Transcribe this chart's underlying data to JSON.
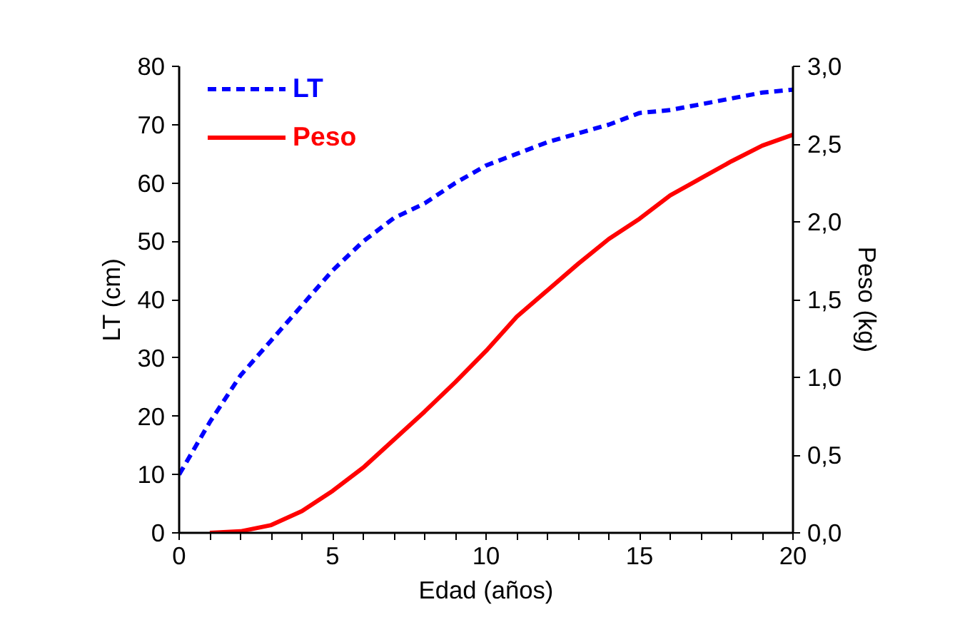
{
  "chart_data": {
    "type": "line",
    "xlabel": "Edad (años)",
    "ylabel": "LT (cm)",
    "y2label": "Peso (kg)",
    "xlim": [
      0,
      20
    ],
    "xticks": [
      0,
      {
        "value": 1,
        "label": null
      },
      {
        "value": 2,
        "label": null
      },
      {
        "value": 3,
        "label": null
      },
      {
        "value": 4,
        "label": null
      },
      5,
      {
        "value": 6,
        "label": null
      },
      {
        "value": 7,
        "label": null
      },
      {
        "value": 8,
        "label": null
      },
      {
        "value": 9,
        "label": null
      },
      10,
      {
        "value": 11,
        "label": null
      },
      {
        "value": 12,
        "label": null
      },
      {
        "value": 13,
        "label": null
      },
      {
        "value": 14,
        "label": null
      },
      15,
      {
        "value": 16,
        "label": null
      },
      {
        "value": 17,
        "label": null
      },
      {
        "value": 18,
        "label": null
      },
      {
        "value": 19,
        "label": null
      },
      20
    ],
    "ylim": [
      0,
      80
    ],
    "yticks": [
      0,
      10,
      20,
      30,
      40,
      50,
      60,
      70,
      80
    ],
    "y2lim": [
      0,
      3
    ],
    "y2ticks": [
      {
        "value": 0,
        "label": "0,0"
      },
      {
        "value": 0.5,
        "label": "0,5"
      },
      {
        "value": 1,
        "label": "1,0"
      },
      {
        "value": 1.5,
        "label": "1,5"
      },
      {
        "value": 2,
        "label": "2,0"
      },
      {
        "value": 2.5,
        "label": "2,5"
      },
      {
        "value": 3,
        "label": "3,0"
      }
    ],
    "grid": false,
    "legend": "top left",
    "marker": "none",
    "series": [
      {
        "name": "LT",
        "color": "#0000ff",
        "line_style": "dashed",
        "x": [
          0,
          1,
          2,
          3,
          4,
          5,
          6,
          7,
          8,
          9,
          10,
          11,
          12,
          13,
          14,
          15,
          16,
          17,
          18,
          19,
          20
        ],
        "values": [
          10,
          19,
          27,
          33,
          39,
          45,
          50,
          54,
          56.5,
          60,
          63,
          65,
          67,
          68.5,
          70,
          72,
          72.5,
          73.5,
          74.5,
          75.5,
          76
        ]
      },
      {
        "name": "Peso",
        "color": "#ff0000",
        "line_style": "solid",
        "axis": "y2",
        "x": [
          1,
          2,
          3,
          4,
          5,
          6,
          7,
          8,
          9,
          10,
          11,
          12,
          13,
          14,
          15,
          16,
          17,
          18,
          19,
          20
        ],
        "values": [
          0,
          0.01,
          0.05,
          0.14,
          0.27,
          0.42,
          0.6,
          0.78,
          0.97,
          1.17,
          1.39,
          1.56,
          1.73,
          1.89,
          2.02,
          2.17,
          2.28,
          2.39,
          2.49,
          2.56
        ]
      }
    ]
  }
}
